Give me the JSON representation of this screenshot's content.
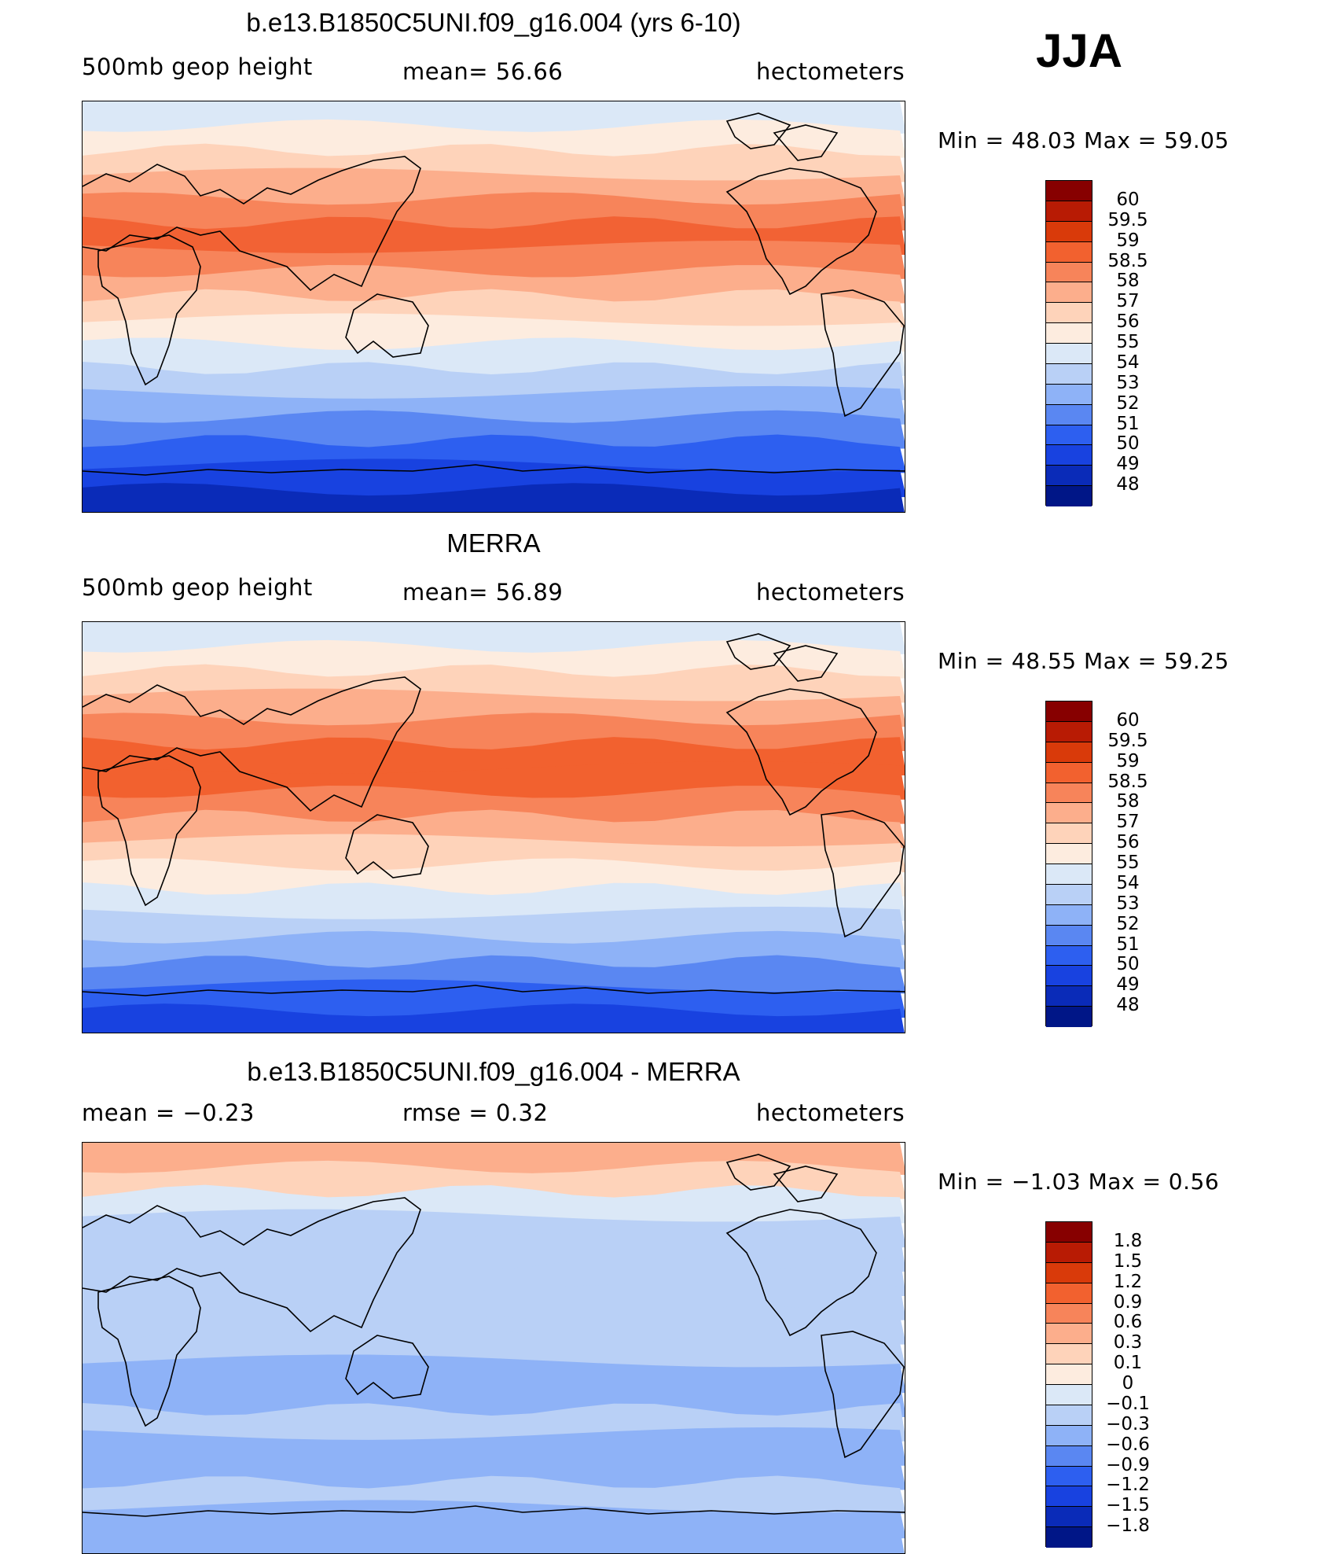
{
  "season": "JJA",
  "panels": [
    {
      "title": "b.e13.B1850C5UNI.f09_g16.004 (yrs 6-10)",
      "left_label": "500mb geop height",
      "center_label": "mean=   56.66",
      "right_label": "hectometers",
      "minmax": "Min =   48.03  Max =   59.05",
      "colorbar": {
        "colors": [
          "#870000",
          "#b81b04",
          "#d93a0a",
          "#f2612f",
          "#f7845a",
          "#fcae8c",
          "#fed3ba",
          "#fdecdf",
          "#dbe8f7",
          "#b9d0f6",
          "#8eb2f7",
          "#5a87f2",
          "#2d5ff0",
          "#1842e0",
          "#0a2bb8",
          "#001687"
        ],
        "labels": [
          "60",
          "59.5",
          "59",
          "58.5",
          "58",
          "57",
          "56",
          "55",
          "54",
          "53",
          "52",
          "51",
          "50",
          "49",
          "48"
        ]
      },
      "bands": [
        "#dbe8f7",
        "#fdecdf",
        "#fed3ba",
        "#fcae8c",
        "#f7845a",
        "#f26234",
        "#f7845a",
        "#fcae8c",
        "#fed3ba",
        "#fdecdf",
        "#dbe8f7",
        "#b9d0f6",
        "#8eb2f7",
        "#5a87f2",
        "#2d5ff0",
        "#1842e0",
        "#0a2bb8"
      ]
    },
    {
      "title": "MERRA",
      "left_label": "500mb geop height",
      "center_label": "mean=   56.89",
      "right_label": "hectometers",
      "minmax": "Min =   48.55  Max =   59.25",
      "colorbar": {
        "colors": [
          "#870000",
          "#b81b04",
          "#d93a0a",
          "#f2612f",
          "#f7845a",
          "#fcae8c",
          "#fed3ba",
          "#fdecdf",
          "#dbe8f7",
          "#b9d0f6",
          "#8eb2f7",
          "#5a87f2",
          "#2d5ff0",
          "#1842e0",
          "#0a2bb8",
          "#001687"
        ],
        "labels": [
          "60",
          "59.5",
          "59",
          "58.5",
          "58",
          "57",
          "56",
          "55",
          "54",
          "53",
          "52",
          "51",
          "50",
          "49",
          "48"
        ]
      },
      "bands": [
        "#dbe8f7",
        "#fdecdf",
        "#fed3ba",
        "#fcae8c",
        "#f7845a",
        "#f2612f",
        "#f2612f",
        "#f7845a",
        "#fcae8c",
        "#fed3ba",
        "#fdecdf",
        "#dbe8f7",
        "#b9d0f6",
        "#8eb2f7",
        "#5a87f2",
        "#2d5ff0",
        "#1842e0"
      ]
    },
    {
      "title": "b.e13.B1850C5UNI.f09_g16.004 - MERRA",
      "left_label": "mean =   −0.23",
      "center_label": "rmse =    0.32",
      "right_label": "hectometers",
      "minmax": "Min =   −1.03  Max =    0.56",
      "colorbar": {
        "colors": [
          "#870000",
          "#b81b04",
          "#d93a0a",
          "#f2612f",
          "#f7845a",
          "#fcae8c",
          "#fed3ba",
          "#fdecdf",
          "#dbe8f7",
          "#b9d0f6",
          "#8eb2f7",
          "#5a87f2",
          "#2d5ff0",
          "#1842e0",
          "#0a2bb8",
          "#001687"
        ],
        "labels": [
          "1.8",
          "1.5",
          "1.2",
          "0.9",
          "0.6",
          "0.3",
          "0.1",
          "0",
          "−0.1",
          "−0.3",
          "−0.6",
          "−0.9",
          "−1.2",
          "−1.5",
          "−1.8"
        ]
      },
      "bands": [
        "#fcae8c",
        "#fed3ba",
        "#dbe8f7",
        "#b9d0f6",
        "#b9d0f6",
        "#b9d0f6",
        "#b9d0f6",
        "#b9d0f6",
        "#b9d0f6",
        "#8eb2f7",
        "#8eb2f7",
        "#b9d0f6",
        "#8eb2f7",
        "#8eb2f7",
        "#b9d0f6",
        "#8eb2f7",
        "#8eb2f7"
      ]
    }
  ]
}
